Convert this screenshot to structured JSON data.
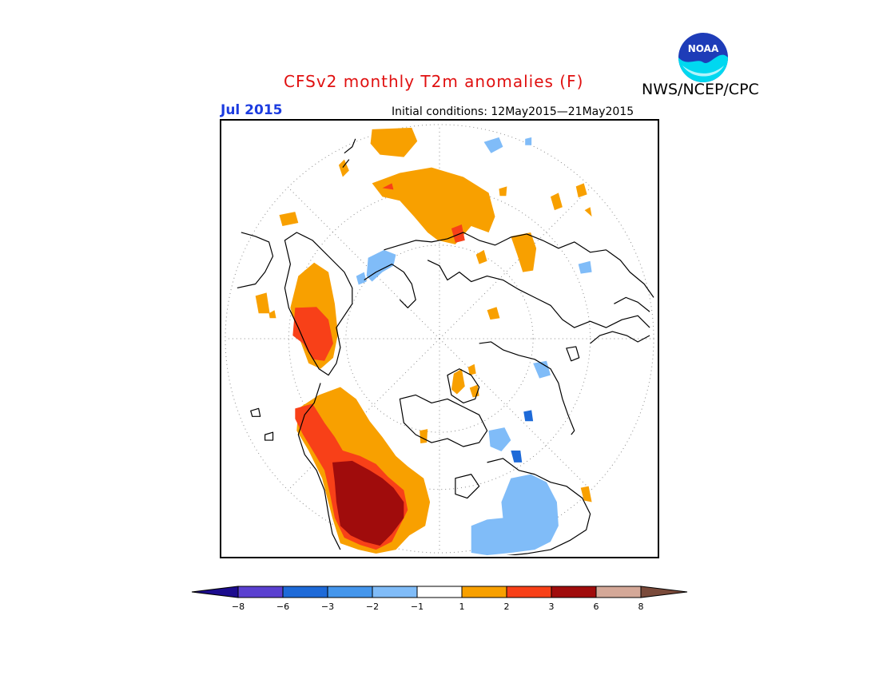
{
  "header": {
    "title": "CFSv2 monthly T2m anomalies (F)",
    "agency": "NWS/NCEP/CPC",
    "logo_text": "NOAA",
    "period": "Jul 2015",
    "initial_conditions": "Initial conditions: 12May2015—21May2015"
  },
  "colorbar": {
    "labels": [
      "−8",
      "−6",
      "−3",
      "−2",
      "−1",
      "1",
      "2",
      "3",
      "6",
      "8"
    ],
    "colors": [
      "#1c0c8e",
      "#5a40d0",
      "#1e6ad8",
      "#4496ec",
      "#80bcf8",
      "#ffffff",
      "#f8a000",
      "#f84018",
      "#a00c0c",
      "#d4a898",
      "#7a4a3a"
    ]
  },
  "map": {
    "projection": "north-polar-stereographic",
    "colors": {
      "warm1": "#f8a000",
      "warm2": "#f84018",
      "warm3": "#a00c0c",
      "cool1": "#80bcf8",
      "cool2": "#4496ec",
      "cool3": "#1e6ad8"
    }
  }
}
